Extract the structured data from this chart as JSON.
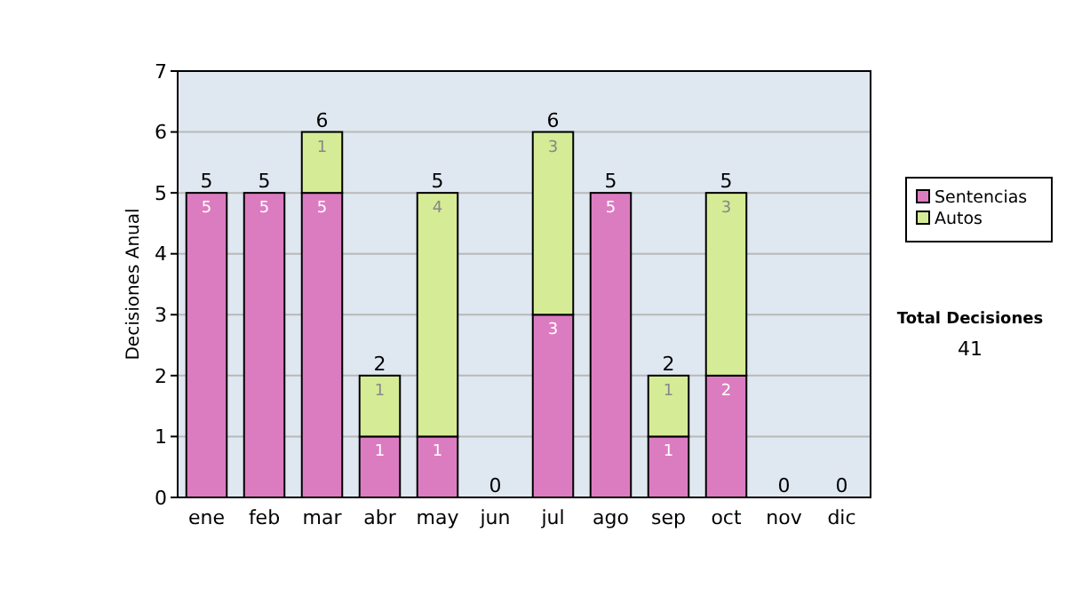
{
  "chart_data": {
    "type": "bar",
    "stacked": true,
    "ylabel": "Decisiones Anual",
    "categories": [
      "ene",
      "feb",
      "mar",
      "abr",
      "may",
      "jun",
      "jul",
      "ago",
      "sep",
      "oct",
      "nov",
      "dic"
    ],
    "series": [
      {
        "name": "Sentencias",
        "color": "#dc7cc0",
        "values": [
          5,
          5,
          5,
          1,
          1,
          0,
          3,
          5,
          1,
          2,
          0,
          0
        ],
        "value_labels": [
          "5",
          "5",
          "5",
          "1",
          "1",
          null,
          "3",
          "5",
          "1",
          "2",
          null,
          null
        ]
      },
      {
        "name": "Autos",
        "color": "#d6eb96",
        "values": [
          0,
          0,
          1,
          1,
          4,
          0,
          3,
          0,
          1,
          3,
          0,
          0
        ],
        "value_labels": [
          null,
          null,
          "1",
          "1",
          "4",
          null,
          "3",
          null,
          "1",
          "3",
          null,
          null
        ]
      }
    ],
    "totals": [
      "5",
      "5",
      "6",
      "2",
      "5",
      "0",
      "6",
      "5",
      "2",
      "5",
      "0",
      "0"
    ],
    "ylim": [
      0,
      7
    ],
    "yticks": [
      0,
      1,
      2,
      3,
      4,
      5,
      6,
      7
    ],
    "grid": "y",
    "legend": "right",
    "annotations": [
      "Total Decisiones",
      "41"
    ]
  }
}
